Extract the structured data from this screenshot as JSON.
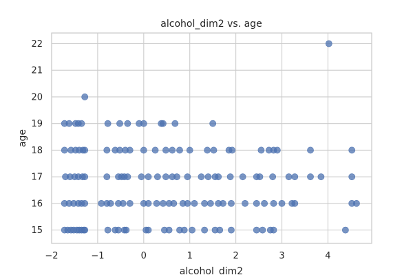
{
  "chart_data": {
    "type": "scatter",
    "title": "alcohol_dim2 vs. age",
    "xlabel": "alcohol_dim2",
    "ylabel": "age",
    "xlim": [
      -2,
      4.95
    ],
    "ylim": [
      14.5,
      22.4
    ],
    "xticks": [
      -2,
      -1,
      0,
      1,
      2,
      3,
      4
    ],
    "yticks": [
      15,
      16,
      17,
      18,
      19,
      20,
      21,
      22
    ],
    "grid": true,
    "marker_color": "#4c72b0",
    "background": "#ffffff",
    "grid_color": "#cccccc",
    "points": [
      {
        "x": -1.72,
        "y": 15
      },
      {
        "x": -1.65,
        "y": 15
      },
      {
        "x": -1.58,
        "y": 15
      },
      {
        "x": -1.52,
        "y": 15
      },
      {
        "x": -1.45,
        "y": 15
      },
      {
        "x": -1.4,
        "y": 15
      },
      {
        "x": -1.35,
        "y": 15
      },
      {
        "x": -1.3,
        "y": 15
      },
      {
        "x": -1.28,
        "y": 15
      },
      {
        "x": -0.78,
        "y": 15
      },
      {
        "x": -0.62,
        "y": 15
      },
      {
        "x": -0.55,
        "y": 15
      },
      {
        "x": -0.42,
        "y": 15
      },
      {
        "x": -0.38,
        "y": 15
      },
      {
        "x": 0.05,
        "y": 15
      },
      {
        "x": 0.1,
        "y": 15
      },
      {
        "x": 0.45,
        "y": 15
      },
      {
        "x": 0.55,
        "y": 15
      },
      {
        "x": 0.78,
        "y": 15
      },
      {
        "x": 0.88,
        "y": 15
      },
      {
        "x": 1.05,
        "y": 15
      },
      {
        "x": 1.32,
        "y": 15
      },
      {
        "x": 1.55,
        "y": 15
      },
      {
        "x": 1.65,
        "y": 15
      },
      {
        "x": 1.9,
        "y": 15
      },
      {
        "x": 2.45,
        "y": 15
      },
      {
        "x": 2.58,
        "y": 15
      },
      {
        "x": 2.75,
        "y": 15
      },
      {
        "x": 2.82,
        "y": 15
      },
      {
        "x": 4.38,
        "y": 15
      },
      {
        "x": -1.72,
        "y": 16
      },
      {
        "x": -1.62,
        "y": 16
      },
      {
        "x": -1.52,
        "y": 16
      },
      {
        "x": -1.42,
        "y": 16
      },
      {
        "x": -1.35,
        "y": 16
      },
      {
        "x": -1.28,
        "y": 16
      },
      {
        "x": -0.92,
        "y": 16
      },
      {
        "x": -0.8,
        "y": 16
      },
      {
        "x": -0.72,
        "y": 16
      },
      {
        "x": -0.55,
        "y": 16
      },
      {
        "x": -0.45,
        "y": 16
      },
      {
        "x": -0.3,
        "y": 16
      },
      {
        "x": 0.0,
        "y": 16
      },
      {
        "x": 0.1,
        "y": 16
      },
      {
        "x": 0.28,
        "y": 16
      },
      {
        "x": 0.42,
        "y": 16
      },
      {
        "x": 0.55,
        "y": 16
      },
      {
        "x": 0.65,
        "y": 16
      },
      {
        "x": 0.85,
        "y": 16
      },
      {
        "x": 0.95,
        "y": 16
      },
      {
        "x": 1.1,
        "y": 16
      },
      {
        "x": 1.32,
        "y": 16
      },
      {
        "x": 1.45,
        "y": 16
      },
      {
        "x": 1.62,
        "y": 16
      },
      {
        "x": 1.72,
        "y": 16
      },
      {
        "x": 1.9,
        "y": 16
      },
      {
        "x": 2.2,
        "y": 16
      },
      {
        "x": 2.45,
        "y": 16
      },
      {
        "x": 2.62,
        "y": 16
      },
      {
        "x": 2.82,
        "y": 16
      },
      {
        "x": 3.0,
        "y": 16
      },
      {
        "x": 3.22,
        "y": 16
      },
      {
        "x": 3.28,
        "y": 16
      },
      {
        "x": 4.52,
        "y": 16
      },
      {
        "x": 4.62,
        "y": 16
      },
      {
        "x": -1.7,
        "y": 17
      },
      {
        "x": -1.6,
        "y": 17
      },
      {
        "x": -1.5,
        "y": 17
      },
      {
        "x": -1.42,
        "y": 17
      },
      {
        "x": -1.33,
        "y": 17
      },
      {
        "x": -1.28,
        "y": 17
      },
      {
        "x": -0.8,
        "y": 17
      },
      {
        "x": -0.55,
        "y": 17
      },
      {
        "x": -0.48,
        "y": 17
      },
      {
        "x": -0.42,
        "y": 17
      },
      {
        "x": -0.35,
        "y": 17
      },
      {
        "x": -0.05,
        "y": 17
      },
      {
        "x": 0.1,
        "y": 17
      },
      {
        "x": 0.3,
        "y": 17
      },
      {
        "x": 0.48,
        "y": 17
      },
      {
        "x": 0.62,
        "y": 17
      },
      {
        "x": 0.72,
        "y": 17
      },
      {
        "x": 0.95,
        "y": 17
      },
      {
        "x": 1.25,
        "y": 17
      },
      {
        "x": 1.4,
        "y": 17
      },
      {
        "x": 1.55,
        "y": 17
      },
      {
        "x": 1.62,
        "y": 17
      },
      {
        "x": 1.88,
        "y": 17
      },
      {
        "x": 2.15,
        "y": 17
      },
      {
        "x": 2.45,
        "y": 17
      },
      {
        "x": 2.52,
        "y": 17
      },
      {
        "x": 2.8,
        "y": 17
      },
      {
        "x": 3.15,
        "y": 17
      },
      {
        "x": 3.28,
        "y": 17
      },
      {
        "x": 3.62,
        "y": 17
      },
      {
        "x": 3.85,
        "y": 17
      },
      {
        "x": 4.52,
        "y": 17
      },
      {
        "x": -1.72,
        "y": 18
      },
      {
        "x": -1.58,
        "y": 18
      },
      {
        "x": -1.48,
        "y": 18
      },
      {
        "x": -1.4,
        "y": 18
      },
      {
        "x": -1.32,
        "y": 18
      },
      {
        "x": -1.28,
        "y": 18
      },
      {
        "x": -0.8,
        "y": 18
      },
      {
        "x": -0.62,
        "y": 18
      },
      {
        "x": -0.52,
        "y": 18
      },
      {
        "x": -0.4,
        "y": 18
      },
      {
        "x": -0.3,
        "y": 18
      },
      {
        "x": 0.0,
        "y": 18
      },
      {
        "x": 0.25,
        "y": 18
      },
      {
        "x": 0.48,
        "y": 18
      },
      {
        "x": 0.62,
        "y": 18
      },
      {
        "x": 0.78,
        "y": 18
      },
      {
        "x": 1.0,
        "y": 18
      },
      {
        "x": 1.38,
        "y": 18
      },
      {
        "x": 1.52,
        "y": 18
      },
      {
        "x": 1.85,
        "y": 18
      },
      {
        "x": 1.92,
        "y": 18
      },
      {
        "x": 2.55,
        "y": 18
      },
      {
        "x": 2.72,
        "y": 18
      },
      {
        "x": 2.82,
        "y": 18
      },
      {
        "x": 2.9,
        "y": 18
      },
      {
        "x": 3.62,
        "y": 18
      },
      {
        "x": 4.52,
        "y": 18
      },
      {
        "x": -1.72,
        "y": 19
      },
      {
        "x": -1.62,
        "y": 19
      },
      {
        "x": -1.48,
        "y": 19
      },
      {
        "x": -1.42,
        "y": 19
      },
      {
        "x": -1.35,
        "y": 19
      },
      {
        "x": -0.78,
        "y": 19
      },
      {
        "x": -0.52,
        "y": 19
      },
      {
        "x": -0.35,
        "y": 19
      },
      {
        "x": -0.1,
        "y": 19
      },
      {
        "x": 0.0,
        "y": 19
      },
      {
        "x": 0.38,
        "y": 19
      },
      {
        "x": 0.42,
        "y": 19
      },
      {
        "x": 0.68,
        "y": 19
      },
      {
        "x": 1.5,
        "y": 19
      },
      {
        "x": -1.28,
        "y": 20
      },
      {
        "x": 4.02,
        "y": 22
      }
    ]
  }
}
